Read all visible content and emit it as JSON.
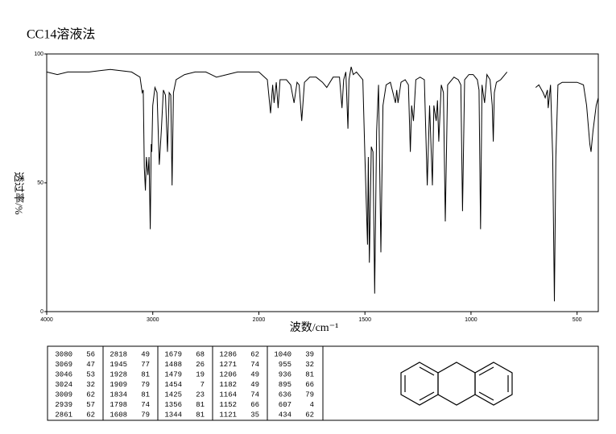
{
  "chart_data": {
    "type": "line",
    "title": "CC14溶液法",
    "y_label": "透过率/%",
    "x_label": "波数/cm⁻¹",
    "xlim": [
      4000,
      400
    ],
    "xticks": [
      4000,
      3000,
      2000,
      1500,
      1000,
      500
    ],
    "ylim": [
      0,
      100
    ],
    "yticks": [
      0,
      50,
      100
    ],
    "series": [
      {
        "color": "#000000",
        "x": [
          4000,
          3900,
          3800,
          3600,
          3400,
          3200,
          3120,
          3100,
          3090,
          3080,
          3069,
          3060,
          3046,
          3035,
          3024,
          3015,
          3009,
          3000,
          2980,
          2960,
          2939,
          2920,
          2900,
          2880,
          2861,
          2845,
          2830,
          2818,
          2805,
          2780,
          2700,
          2600,
          2500,
          2450,
          2400,
          2300,
          2200,
          2100,
          2000,
          1960,
          1945,
          1935,
          1928,
          1918,
          1909,
          1900,
          1870,
          1850,
          1834,
          1820,
          1810,
          1798,
          1785,
          1760,
          1730,
          1700,
          1680,
          1650,
          1620,
          1608,
          1600,
          1590,
          1580,
          1575,
          1565,
          1555,
          1540,
          1510,
          1500,
          1488,
          1484,
          1479,
          1470,
          1462,
          1454,
          1445,
          1436,
          1425,
          1415,
          1400,
          1380,
          1356,
          1350,
          1344,
          1330,
          1310,
          1295,
          1286,
          1280,
          1271,
          1260,
          1240,
          1220,
          1206,
          1195,
          1182,
          1175,
          1164,
          1158,
          1152,
          1140,
          1130,
          1121,
          1110,
          1080,
          1060,
          1048,
          1040,
          1030,
          1010,
          990,
          970,
          962,
          955,
          948,
          936,
          925,
          910,
          900,
          895,
          890,
          880,
          860,
          840,
          830,
          null,
          695,
          680,
          660,
          650,
          640,
          636,
          625,
          615,
          607,
          600,
          590,
          570,
          540,
          500,
          470,
          455,
          440,
          434,
          425,
          410,
          400
        ],
        "values": [
          93,
          92,
          93,
          93,
          94,
          93,
          91,
          85,
          86,
          56,
          47,
          60,
          53,
          60,
          32,
          65,
          62,
          80,
          87,
          85,
          57,
          70,
          86,
          84,
          62,
          85,
          84,
          49,
          85,
          90,
          92,
          93,
          93,
          92,
          91,
          92,
          93,
          93,
          93,
          90,
          77,
          88,
          81,
          89,
          79,
          90,
          90,
          88,
          81,
          89,
          88,
          74,
          89,
          91,
          91,
          89,
          87,
          91,
          91,
          79,
          90,
          93,
          71,
          90,
          95,
          92,
          93,
          90,
          60,
          26,
          60,
          19,
          64,
          62,
          7,
          70,
          88,
          23,
          80,
          88,
          89,
          81,
          86,
          81,
          89,
          90,
          88,
          62,
          80,
          74,
          90,
          91,
          90,
          49,
          80,
          49,
          80,
          74,
          82,
          66,
          88,
          85,
          35,
          88,
          91,
          90,
          88,
          39,
          90,
          92,
          92,
          90,
          86,
          32,
          88,
          81,
          92,
          90,
          80,
          66,
          85,
          89,
          90,
          92,
          93,
          null,
          87,
          88,
          85,
          83,
          86,
          79,
          88,
          60,
          4,
          60,
          88,
          89,
          89,
          89,
          88,
          80,
          65,
          62,
          70,
          80,
          83
        ]
      }
    ]
  },
  "peak_table": [
    [
      [
        3080,
        56
      ],
      [
        3069,
        47
      ],
      [
        3046,
        53
      ],
      [
        3024,
        32
      ],
      [
        3009,
        62
      ],
      [
        2939,
        57
      ],
      [
        2861,
        62
      ]
    ],
    [
      [
        2818,
        49
      ],
      [
        1945,
        77
      ],
      [
        1928,
        81
      ],
      [
        1909,
        79
      ],
      [
        1834,
        81
      ],
      [
        1798,
        74
      ],
      [
        1608,
        79
      ]
    ],
    [
      [
        1679,
        68
      ],
      [
        1488,
        26
      ],
      [
        1479,
        19
      ],
      [
        1454,
        7
      ],
      [
        1425,
        23
      ],
      [
        1356,
        81
      ],
      [
        1344,
        81
      ]
    ],
    [
      [
        1286,
        62
      ],
      [
        1271,
        74
      ],
      [
        1206,
        49
      ],
      [
        1182,
        49
      ],
      [
        1164,
        74
      ],
      [
        1152,
        66
      ],
      [
        1121,
        35
      ]
    ],
    [
      [
        1040,
        39
      ],
      [
        955,
        32
      ],
      [
        936,
        81
      ],
      [
        895,
        66
      ],
      [
        636,
        79
      ],
      [
        607,
        4
      ],
      [
        434,
        62
      ]
    ]
  ]
}
